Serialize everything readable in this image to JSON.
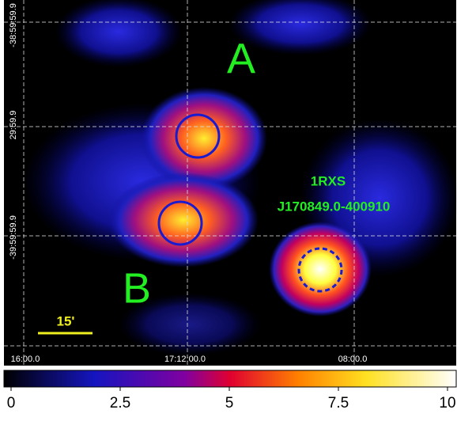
{
  "image": {
    "labels": {
      "a": "A",
      "b": "B",
      "source_line1": "1RXS",
      "source_line2": "J170849.0-400910",
      "scale": "15'"
    },
    "dec_labels": [
      "-38:59:59.9",
      "29:59.9",
      "-39:59:59.9"
    ],
    "ra_labels": [
      "16:00.0",
      "17:12:00.0",
      "08:00.0"
    ]
  },
  "colorbar": {
    "lim": [
      0,
      10
    ],
    "ticks": [
      0,
      2.5,
      5,
      7.5,
      10
    ]
  }
}
